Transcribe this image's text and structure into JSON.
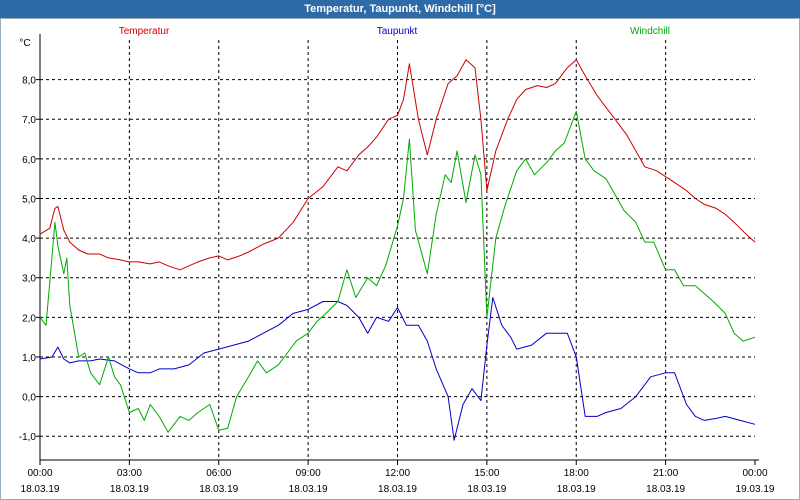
{
  "window": {
    "title": "Temperatur, Taupunkt, Windchill [°C]"
  },
  "chart_data": {
    "type": "line",
    "title": "Temperatur, Taupunkt, Windchill [°C]",
    "ylabel": "°C",
    "ylim": [
      -1.6,
      9.0
    ],
    "yticks": [
      8.0,
      7.0,
      6.0,
      5.0,
      4.0,
      3.0,
      2.0,
      1.0,
      0.0,
      -1.0
    ],
    "ytick_labels": [
      "8,0",
      "7,0",
      "6,0",
      "5,0",
      "4,0",
      "3,0",
      "2,0",
      "1,0",
      "0,0",
      "-1,0"
    ],
    "xlim": [
      0,
      24
    ],
    "xticks": [
      0,
      3,
      6,
      9,
      12,
      15,
      18,
      21,
      24
    ],
    "xtick_labels": [
      [
        "00:00",
        "18.03.19"
      ],
      [
        "03:00",
        "18.03.19"
      ],
      [
        "06:00",
        "18.03.19"
      ],
      [
        "09:00",
        "18.03.19"
      ],
      [
        "12:00",
        "18.03.19"
      ],
      [
        "15:00",
        "18.03.19"
      ],
      [
        "18:00",
        "18.03.19"
      ],
      [
        "21:00",
        "18.03.19"
      ],
      [
        "00:00",
        "19.03.19"
      ]
    ],
    "grid": true,
    "legend": "top",
    "series": [
      {
        "name": "Temperatur",
        "color": "#cc0000",
        "x": [
          0,
          0.33,
          0.5,
          0.6,
          0.8,
          1,
          1.3,
          1.6,
          2,
          2.3,
          2.7,
          3,
          3.3,
          3.7,
          4,
          4.3,
          4.7,
          5,
          5.3,
          5.7,
          6,
          6.3,
          6.7,
          7,
          7.5,
          8,
          8.5,
          9,
          9.5,
          10,
          10.3,
          10.7,
          11,
          11.3,
          11.7,
          12,
          12.2,
          12.4,
          12.7,
          13,
          13.3,
          13.7,
          14,
          14.3,
          14.6,
          14.8,
          15,
          15.3,
          15.7,
          16,
          16.3,
          16.7,
          17,
          17.3,
          17.7,
          18,
          18.3,
          18.7,
          19,
          19.3,
          19.7,
          20,
          20.3,
          20.7,
          21,
          21.3,
          21.7,
          22,
          22.3,
          22.7,
          23,
          23.3,
          23.7,
          24
        ],
        "values": [
          4.1,
          4.25,
          4.75,
          4.8,
          4.2,
          3.9,
          3.7,
          3.6,
          3.6,
          3.5,
          3.45,
          3.4,
          3.4,
          3.35,
          3.4,
          3.3,
          3.2,
          3.3,
          3.4,
          3.5,
          3.55,
          3.45,
          3.55,
          3.65,
          3.85,
          4.0,
          4.4,
          5.0,
          5.3,
          5.8,
          5.7,
          6.1,
          6.3,
          6.55,
          7.0,
          7.1,
          7.5,
          8.4,
          7.0,
          6.1,
          7.0,
          7.9,
          8.1,
          8.5,
          8.3,
          7.0,
          5.2,
          6.2,
          7.0,
          7.5,
          7.75,
          7.85,
          7.8,
          7.9,
          8.3,
          8.5,
          8.1,
          7.6,
          7.3,
          7.0,
          6.6,
          6.2,
          5.8,
          5.7,
          5.55,
          5.4,
          5.2,
          5.0,
          4.85,
          4.75,
          4.6,
          4.4,
          4.1,
          3.9
        ]
      },
      {
        "name": "Taupunkt",
        "color": "#0000c8",
        "x": [
          0,
          0.4,
          0.6,
          0.8,
          1,
          1.3,
          1.7,
          2,
          2.5,
          3,
          3.3,
          3.7,
          4,
          4.5,
          5,
          5.5,
          6,
          6.5,
          7,
          7.5,
          8,
          8.5,
          9,
          9.5,
          10,
          10.3,
          10.7,
          11,
          11.3,
          11.7,
          12,
          12.3,
          12.7,
          13,
          13.3,
          13.7,
          13.9,
          14.2,
          14.5,
          14.8,
          15,
          15.2,
          15.5,
          15.8,
          16,
          16.5,
          17,
          17.3,
          17.7,
          18,
          18.3,
          18.7,
          19,
          19.5,
          20,
          20.5,
          21,
          21.3,
          21.7,
          22,
          22.3,
          22.7,
          23,
          23.5,
          24
        ],
        "values": [
          0.95,
          1.0,
          1.25,
          0.95,
          0.85,
          0.9,
          0.9,
          0.95,
          0.9,
          0.7,
          0.6,
          0.6,
          0.7,
          0.7,
          0.8,
          1.1,
          1.2,
          1.3,
          1.4,
          1.6,
          1.8,
          2.1,
          2.2,
          2.4,
          2.4,
          2.3,
          2.0,
          1.6,
          2.0,
          1.9,
          2.25,
          1.8,
          1.8,
          1.4,
          0.7,
          0.0,
          -1.1,
          -0.2,
          0.2,
          -0.1,
          1.3,
          2.5,
          1.8,
          1.5,
          1.2,
          1.3,
          1.6,
          1.6,
          1.6,
          1.0,
          -0.5,
          -0.5,
          -0.4,
          -0.3,
          0.0,
          0.5,
          0.6,
          0.6,
          -0.2,
          -0.5,
          -0.6,
          -0.55,
          -0.5,
          -0.6,
          -0.7
        ]
      },
      {
        "name": "Windchill",
        "color": "#00aa00",
        "x": [
          0,
          0.2,
          0.4,
          0.5,
          0.6,
          0.8,
          0.9,
          1,
          1.3,
          1.5,
          1.7,
          2,
          2.3,
          2.5,
          2.7,
          3,
          3.3,
          3.5,
          3.7,
          4,
          4.3,
          4.7,
          5,
          5.3,
          5.7,
          6,
          6.3,
          6.6,
          7,
          7.3,
          7.6,
          8,
          8.3,
          8.6,
          9,
          9.3,
          9.6,
          10,
          10.3,
          10.6,
          11,
          11.3,
          11.6,
          12,
          12.2,
          12.4,
          12.6,
          13,
          13.3,
          13.6,
          13.8,
          14,
          14.3,
          14.6,
          14.8,
          15,
          15.3,
          15.6,
          16,
          16.3,
          16.6,
          17,
          17.3,
          17.6,
          18,
          18.3,
          18.6,
          19,
          19.3,
          19.6,
          20,
          20.3,
          20.6,
          21,
          21.3,
          21.6,
          22,
          22.3,
          22.6,
          23,
          23.3,
          23.6,
          24
        ],
        "values": [
          2.0,
          1.8,
          3.5,
          4.4,
          3.8,
          3.1,
          3.5,
          2.3,
          1.0,
          1.1,
          0.6,
          0.3,
          1.0,
          0.5,
          0.3,
          -0.4,
          -0.3,
          -0.6,
          -0.2,
          -0.5,
          -0.9,
          -0.5,
          -0.6,
          -0.4,
          -0.2,
          -0.85,
          -0.8,
          0.0,
          0.5,
          0.9,
          0.6,
          0.8,
          1.1,
          1.4,
          1.6,
          1.9,
          2.1,
          2.4,
          3.2,
          2.5,
          3.0,
          2.8,
          3.3,
          4.3,
          5.0,
          6.5,
          4.2,
          3.1,
          4.6,
          5.6,
          5.4,
          6.2,
          4.9,
          6.1,
          5.6,
          2.0,
          4.0,
          4.8,
          5.7,
          6.0,
          5.6,
          5.9,
          6.2,
          6.4,
          7.2,
          6.0,
          5.7,
          5.5,
          5.1,
          4.7,
          4.4,
          3.9,
          3.9,
          3.2,
          3.2,
          2.8,
          2.8,
          2.6,
          2.4,
          2.1,
          1.6,
          1.4,
          1.5
        ]
      }
    ]
  }
}
